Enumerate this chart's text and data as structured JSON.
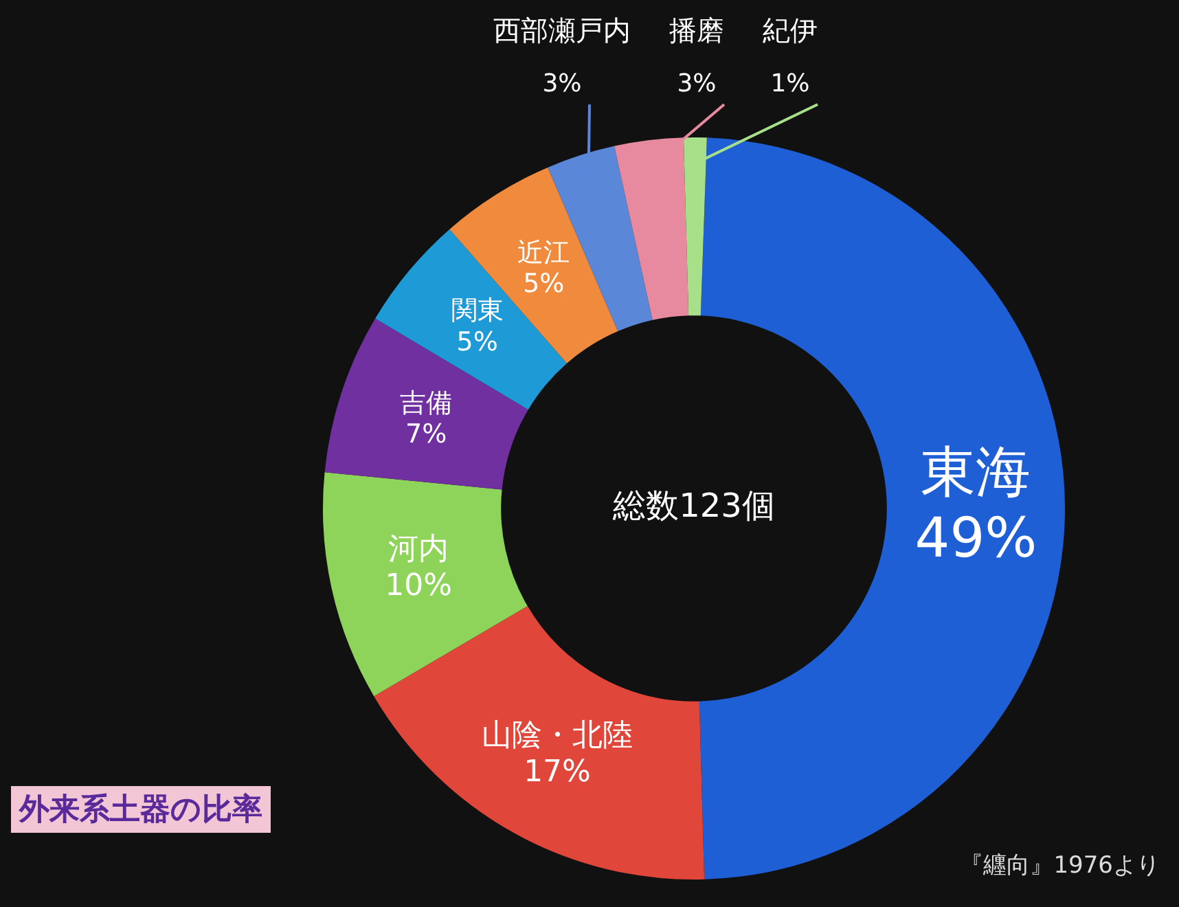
{
  "chart_data": {
    "type": "donut",
    "title": "外来系土器の比率",
    "categories": [
      "東海",
      "山陰・北陸",
      "河内",
      "吉備",
      "関東",
      "近江",
      "西部瀬戸内",
      "播磨",
      "紀伊"
    ],
    "values": [
      49,
      17,
      10,
      7,
      5,
      5,
      3,
      3,
      1
    ],
    "colors": [
      "#1f5fd6",
      "#e0473a",
      "#8fd45a",
      "#7030a0",
      "#1e9ad6",
      "#f08a3c",
      "#5b87d9",
      "#e78aa0",
      "#a8e08a"
    ],
    "value_labels": [
      "49%",
      "17%",
      "10%",
      "7%",
      "5%",
      "5%",
      "3%",
      "3%",
      "1%"
    ],
    "legend": false,
    "annotations": [
      "総数123個",
      "『纒向』1976より"
    ]
  }
}
